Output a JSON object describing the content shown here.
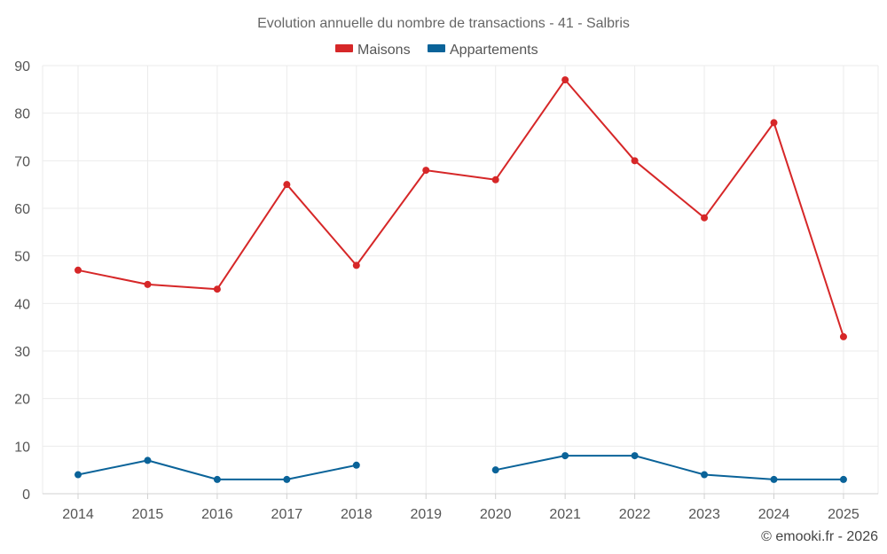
{
  "chart_data": {
    "type": "line",
    "title": "Evolution annuelle du nombre de transactions - 41 - Salbris",
    "categories": [
      "2014",
      "2015",
      "2016",
      "2017",
      "2018",
      "2019",
      "2020",
      "2021",
      "2022",
      "2023",
      "2024",
      "2025"
    ],
    "series": [
      {
        "name": "Maisons",
        "color": "#d62728",
        "values": [
          47,
          44,
          43,
          65,
          48,
          68,
          66,
          87,
          70,
          58,
          78,
          33
        ]
      },
      {
        "name": "Appartements",
        "color": "#0a6399",
        "values": [
          4,
          7,
          3,
          3,
          6,
          null,
          5,
          8,
          8,
          4,
          3,
          3
        ]
      }
    ],
    "ylim": [
      0,
      90
    ],
    "yticks": [
      0,
      10,
      20,
      30,
      40,
      50,
      60,
      70,
      80,
      90
    ],
    "grid": true,
    "legend": "top-center"
  },
  "credit": "© emooki.fr - 2026"
}
